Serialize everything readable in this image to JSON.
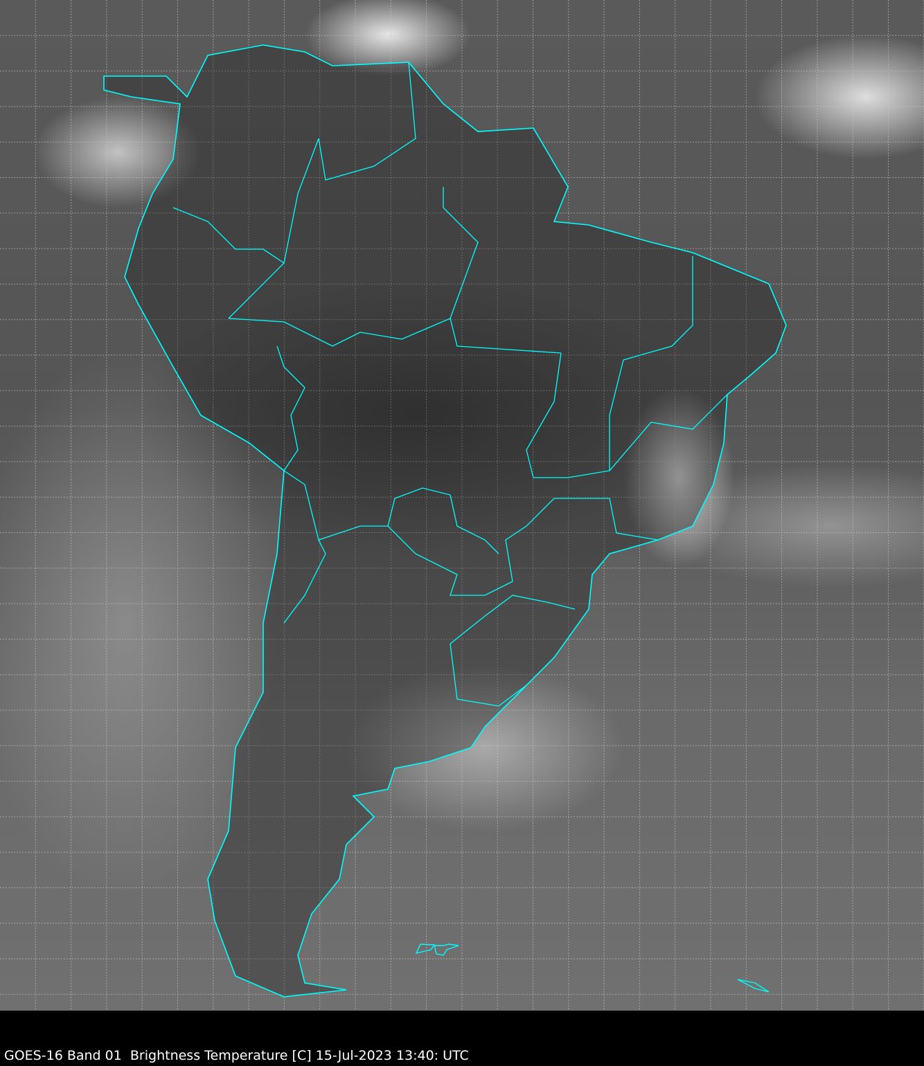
{
  "caption": "GOES-16 Band 01  Brightness Temperature [C] 15-Jul-2023 13:40: UTC",
  "colors": {
    "borders": "#00ffff",
    "grid": "#cccccc",
    "background": "#000000"
  },
  "grid": {
    "shown": true,
    "style": "dashed"
  }
}
